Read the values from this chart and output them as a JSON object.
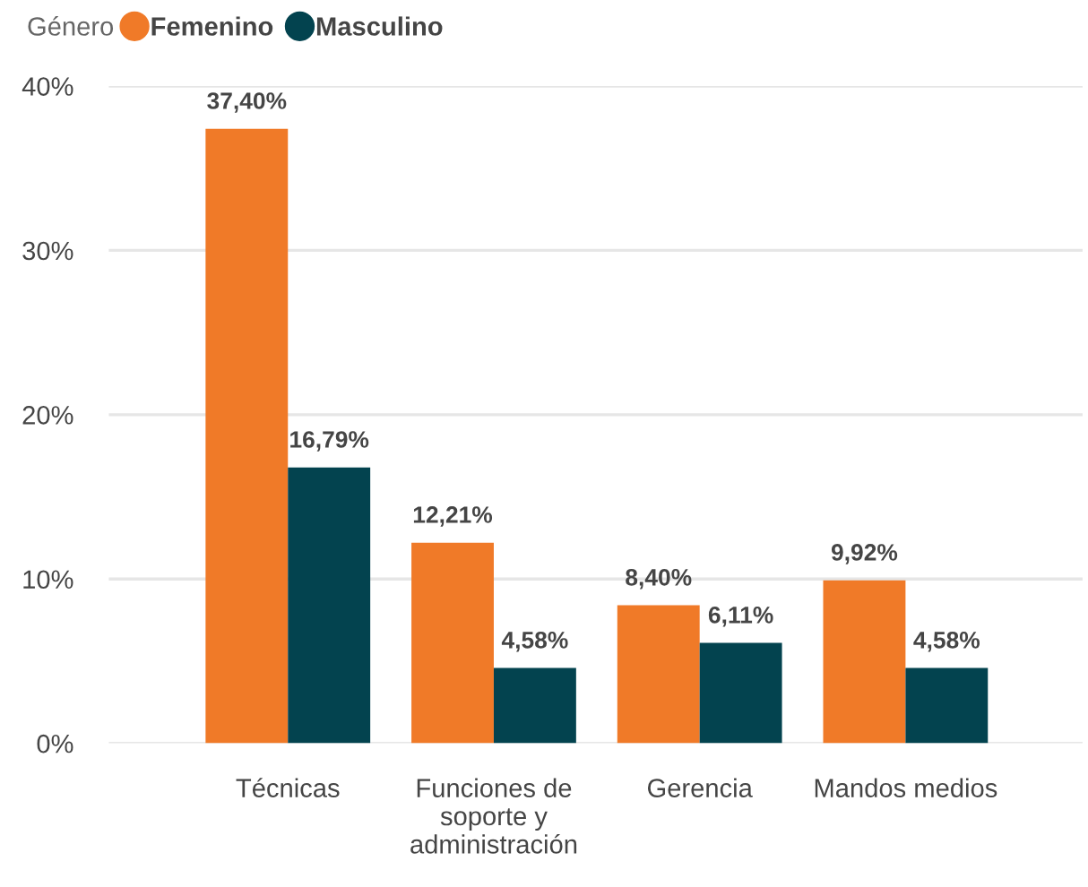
{
  "chart_data": {
    "type": "bar",
    "legend_title": "Género",
    "categories": [
      "Técnicas",
      "Funciones de soporte y administración",
      "Gerencia",
      "Mandos medios"
    ],
    "series": [
      {
        "name": "Femenino",
        "color": "#f07a28",
        "values": [
          37.4,
          12.21,
          8.4,
          9.92
        ],
        "value_labels": [
          "37,40%",
          "12,21%",
          "8,40%",
          "9,92%"
        ]
      },
      {
        "name": "Masculino",
        "color": "#03434f",
        "values": [
          16.79,
          4.58,
          6.11,
          4.58
        ],
        "value_labels": [
          "16,79%",
          "4,58%",
          "6,11%",
          "4,58%"
        ]
      }
    ],
    "ylim": [
      0,
      40
    ],
    "yticks": [
      {
        "value": 0,
        "label": "0%"
      },
      {
        "value": 10,
        "label": "10%"
      },
      {
        "value": 20,
        "label": "20%"
      },
      {
        "value": 30,
        "label": "30%"
      },
      {
        "value": 40,
        "label": "40%"
      }
    ],
    "grid": "y",
    "legend": "top left"
  }
}
